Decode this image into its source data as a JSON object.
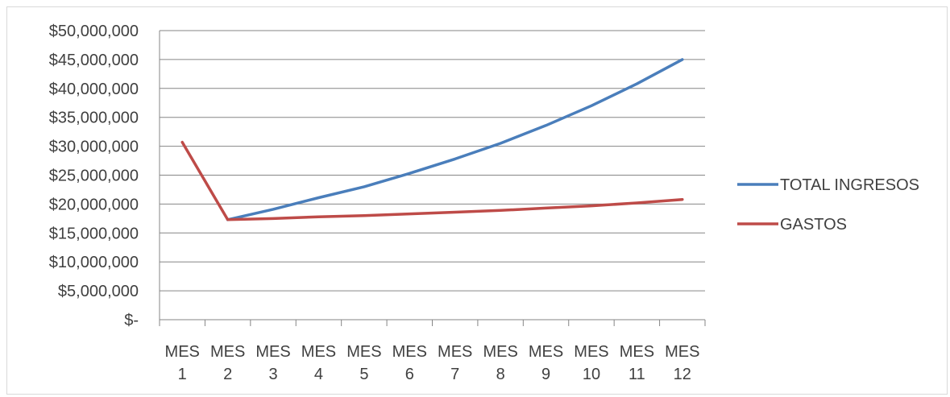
{
  "chart_data": {
    "type": "line",
    "title": "",
    "xlabel": "",
    "ylabel": "",
    "categories": [
      [
        "MES",
        "1"
      ],
      [
        "MES",
        "2"
      ],
      [
        "MES",
        "3"
      ],
      [
        "MES",
        "4"
      ],
      [
        "MES",
        "5"
      ],
      [
        "MES",
        "6"
      ],
      [
        "MES",
        "7"
      ],
      [
        "MES",
        "8"
      ],
      [
        "MES",
        "9"
      ],
      [
        "MES",
        "10"
      ],
      [
        "MES",
        "11"
      ],
      [
        "MES",
        "12"
      ]
    ],
    "y_tick_labels": [
      "$-",
      "$5,000,000",
      "$10,000,000",
      "$15,000,000",
      "$20,000,000",
      "$25,000,000",
      "$30,000,000",
      "$35,000,000",
      "$40,000,000",
      "$45,000,000",
      "$50,000,000"
    ],
    "ylim": [
      0,
      50000000
    ],
    "y_step": 5000000,
    "grid": true,
    "legend_position": "right",
    "series": [
      {
        "name": "TOTAL INGRESOS",
        "color": "#4a7ebb",
        "values": [
          null,
          17300000,
          19100000,
          21100000,
          23000000,
          25300000,
          27800000,
          30500000,
          33600000,
          37000000,
          40800000,
          45000000
        ]
      },
      {
        "name": "GASTOS",
        "color": "#be4b48",
        "values": [
          30700000,
          17300000,
          17500000,
          17800000,
          18000000,
          18300000,
          18600000,
          18900000,
          19300000,
          19700000,
          20200000,
          20800000
        ]
      }
    ]
  }
}
